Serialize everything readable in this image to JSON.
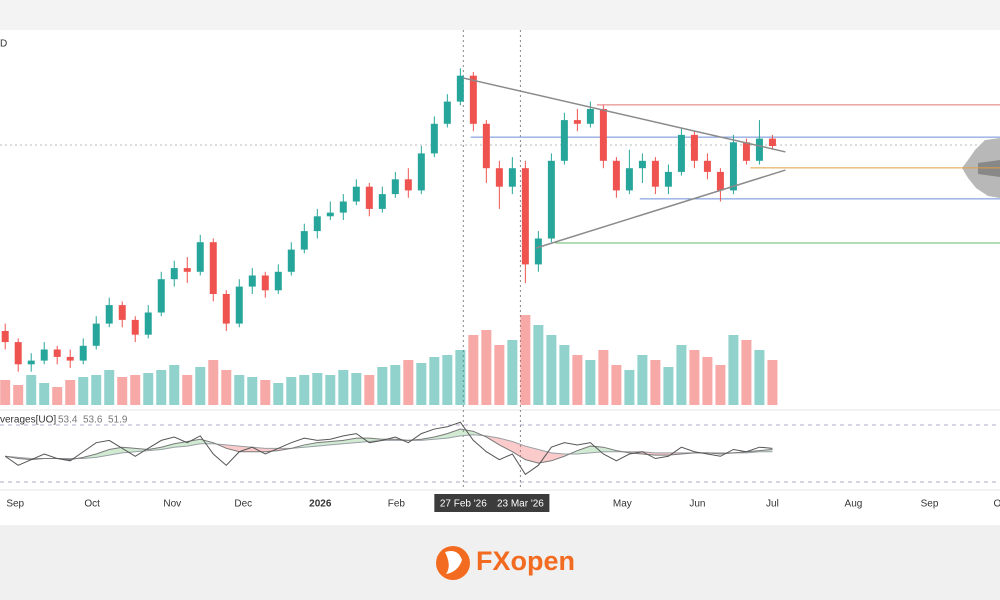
{
  "chart_data": {
    "type": "candlestick",
    "symbol_fragment": "D",
    "xlim": [
      -0.4,
      76.5
    ],
    "xticks": [
      {
        "value": 0.77,
        "label": "Sep"
      },
      {
        "value": 6.69,
        "label": "Oct"
      },
      {
        "value": 12.85,
        "label": "Nov"
      },
      {
        "value": 18.31,
        "label": "Dec"
      },
      {
        "value": 24.23,
        "label": "2026"
      },
      {
        "value": 30.08,
        "label": "Feb"
      },
      {
        "value": 35.23,
        "label": "27 Feb '26"
      },
      {
        "value": 39.62,
        "label": "23 Mar '26"
      },
      {
        "value": 47.46,
        "label": "May"
      },
      {
        "value": 53.23,
        "label": "Jun"
      },
      {
        "value": 59,
        "label": "Jul"
      },
      {
        "value": 65.23,
        "label": "Aug"
      },
      {
        "value": 71.08,
        "label": "Sep"
      },
      {
        "value": 76.3,
        "label": "O"
      }
    ],
    "highlighted_ticks": [
      6,
      7
    ],
    "bold_ticks": [
      4
    ],
    "ylim": [
      0,
      100
    ],
    "up_color": "#26a69a",
    "down_color": "#ef5350",
    "open": [
      20,
      17,
      11,
      12,
      15,
      13,
      12,
      16,
      22,
      27,
      23,
      19,
      25,
      34,
      37,
      36,
      44,
      30,
      22,
      32,
      35,
      31,
      36,
      42,
      47,
      51,
      52,
      55,
      59,
      53,
      57,
      61,
      58,
      68,
      76,
      82,
      89,
      76,
      64,
      59,
      64,
      38,
      45,
      66,
      77,
      76,
      80,
      66,
      58,
      64,
      66,
      59,
      63,
      73,
      66,
      63,
      58,
      71,
      66,
      72
    ],
    "high": [
      22,
      18,
      14,
      17,
      16,
      15,
      18,
      24,
      29,
      28,
      24,
      27,
      36,
      39,
      40,
      46,
      45,
      31,
      34,
      37,
      36,
      38,
      44,
      49,
      53,
      55,
      57,
      61,
      60,
      59,
      63,
      64,
      70,
      78,
      84,
      91,
      90,
      77,
      66,
      67,
      66,
      47,
      68,
      79,
      80,
      82,
      81,
      67,
      69,
      68,
      67,
      65,
      75,
      74,
      68,
      64,
      73,
      72,
      77,
      73
    ],
    "low": [
      15,
      9,
      9,
      11,
      11,
      10,
      11,
      15,
      21,
      21,
      17,
      18,
      24,
      32,
      33,
      35,
      28,
      20,
      21,
      30,
      29,
      30,
      35,
      41,
      45,
      50,
      50,
      54,
      51,
      52,
      56,
      56,
      57,
      67,
      75,
      81,
      74,
      60,
      53,
      57,
      33,
      36,
      44,
      65,
      74,
      75,
      64,
      56,
      57,
      60,
      57,
      57,
      62,
      64,
      61,
      55,
      57,
      65,
      65,
      69
    ],
    "close": [
      17,
      11,
      12,
      15,
      13,
      12,
      16,
      22,
      27,
      23,
      19,
      25,
      34,
      37,
      36,
      44,
      30,
      22,
      32,
      35,
      31,
      36,
      42,
      47,
      51,
      52,
      55,
      59,
      53,
      57,
      61,
      58,
      68,
      76,
      82,
      89,
      76,
      64,
      59,
      64,
      38,
      45,
      66,
      77,
      76,
      80,
      66,
      58,
      64,
      66,
      59,
      63,
      73,
      66,
      63,
      58,
      71,
      66,
      72,
      70
    ],
    "volume": [
      25,
      20,
      30,
      22,
      18,
      25,
      28,
      30,
      35,
      28,
      30,
      32,
      35,
      40,
      30,
      38,
      45,
      35,
      30,
      28,
      25,
      22,
      28,
      30,
      32,
      30,
      35,
      32,
      30,
      38,
      40,
      45,
      42,
      48,
      50,
      55,
      70,
      75,
      60,
      65,
      90,
      80,
      70,
      60,
      50,
      45,
      55,
      40,
      35,
      50,
      45,
      38,
      60,
      55,
      48,
      40,
      70,
      65,
      55,
      45
    ],
    "trendlines": [
      {
        "x": [
          35.2,
          60
        ],
        "values": [
          88.4,
          68.4
        ],
        "color": "#8a8a8a"
      },
      {
        "x": [
          40.8,
          60
        ],
        "values": [
          42.4,
          63.5
        ],
        "color": "#8a8a8a"
      }
    ],
    "levels": [
      {
        "start": 45.5,
        "value": 81.1,
        "color": "#e57373"
      },
      {
        "start": 35.8,
        "value": 72.4,
        "color": "#6b8fd6"
      },
      {
        "start": 57.3,
        "value": 64.1,
        "color": "#e0a040"
      },
      {
        "start": 48.8,
        "value": 55.7,
        "color": "#6b8fd6"
      },
      {
        "start": 42.3,
        "value": 43.8,
        "color": "#66bb6a"
      }
    ],
    "oscillator": {
      "name": "verages[UO]",
      "readings": [
        53.4,
        53.6,
        51.9
      ],
      "ylim": [
        20,
        80
      ],
      "uo": [
        48,
        40,
        45,
        50,
        46,
        44,
        52,
        60,
        62,
        55,
        48,
        55,
        62,
        65,
        60,
        66,
        50,
        40,
        52,
        56,
        50,
        55,
        60,
        64,
        62,
        63,
        66,
        68,
        60,
        62,
        65,
        60,
        68,
        72,
        74,
        78,
        62,
        52,
        45,
        50,
        32,
        40,
        56,
        60,
        58,
        60,
        50,
        44,
        50,
        52,
        46,
        48,
        56,
        52,
        50,
        48,
        54,
        52,
        56,
        55
      ],
      "ma_fast": [
        48,
        46,
        45,
        46,
        46,
        45,
        47,
        50,
        54,
        56,
        55,
        54,
        56,
        59,
        61,
        63,
        60,
        55,
        52,
        52,
        52,
        53,
        55,
        58,
        60,
        61,
        62,
        64,
        64,
        63,
        63,
        62,
        63,
        65,
        68,
        72,
        70,
        65,
        58,
        52,
        45,
        42,
        44,
        48,
        53,
        57,
        56,
        53,
        51,
        50,
        49,
        49,
        50,
        51,
        51,
        50,
        51,
        52,
        53,
        54
      ],
      "ma_slow": [
        48,
        47,
        46,
        46,
        46,
        46,
        46,
        47,
        49,
        51,
        52,
        53,
        54,
        56,
        57,
        59,
        59,
        58,
        57,
        56,
        55,
        55,
        55,
        56,
        57,
        58,
        59,
        60,
        61,
        62,
        62,
        62,
        62,
        63,
        64,
        66,
        67,
        66,
        64,
        61,
        57,
        54,
        51,
        50,
        50,
        51,
        52,
        52,
        52,
        52,
        51,
        51,
        51,
        51,
        51,
        51,
        51,
        51,
        52,
        52
      ]
    }
  },
  "brand": "FXopen"
}
